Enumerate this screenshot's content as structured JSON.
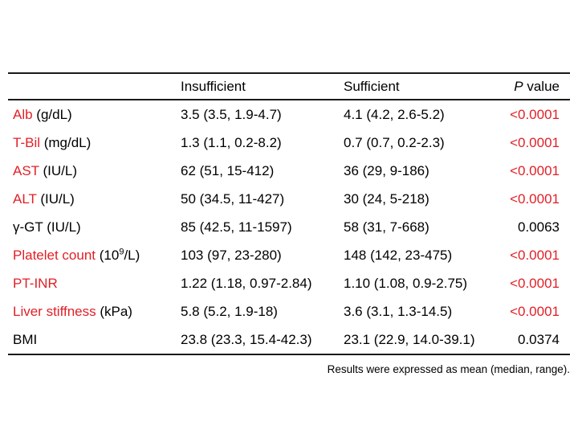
{
  "colors": {
    "accent_red": "#e11f26",
    "rule": "#1a1a1a",
    "text": "#000000",
    "background": "#ffffff"
  },
  "table": {
    "columns": {
      "row_header": "",
      "insufficient": "Insufficient",
      "sufficient": "Sufficient",
      "p_italic": "P",
      "p_rest": " value"
    },
    "rows": [
      {
        "name": "Alb",
        "unit": " (g/dL)",
        "name_red": true,
        "insufficient": "3.5 (3.5, 1.9-4.7)",
        "sufficient": "4.1 (4.2, 2.6-5.2)",
        "p": "<0.0001",
        "p_red": true
      },
      {
        "name": "T-Bil",
        "unit": " (mg/dL)",
        "name_red": true,
        "insufficient": "1.3 (1.1, 0.2-8.2)",
        "sufficient": "0.7 (0.7, 0.2-2.3)",
        "p": "<0.0001",
        "p_red": true
      },
      {
        "name": "AST",
        "unit": " (IU/L)",
        "name_red": true,
        "insufficient": "62 (51, 15-412)",
        "sufficient": "36 (29, 9-186)",
        "p": "<0.0001",
        "p_red": true
      },
      {
        "name": "ALT",
        "unit": " (IU/L)",
        "name_red": true,
        "insufficient": "50 (34.5, 11-427)",
        "sufficient": "30 (24, 5-218)",
        "p": "<0.0001",
        "p_red": true
      },
      {
        "name": "γ-GT",
        "unit": " (IU/L)",
        "name_red": false,
        "insufficient": "85 (42.5, 11-1597)",
        "sufficient": "58 (31, 7-668)",
        "p": "0.0063",
        "p_red": false
      },
      {
        "name": "Platelet count",
        "unit": " (10⁹/L)",
        "name_red": true,
        "insufficient": "103 (97, 23-280)",
        "sufficient": "148 (142, 23-475)",
        "p": "<0.0001",
        "p_red": true
      },
      {
        "name": "PT-INR",
        "unit": "",
        "name_red": true,
        "insufficient": "1.22 (1.18, 0.97-2.84)",
        "sufficient": "1.10 (1.08, 0.9-2.75)",
        "p": "<0.0001",
        "p_red": true
      },
      {
        "name": "Liver stiffness",
        "unit": " (kPa)",
        "name_red": true,
        "insufficient": "5.8 (5.2, 1.9-18)",
        "sufficient": "3.6 (3.1, 1.3-14.5)",
        "p": "<0.0001",
        "p_red": true
      },
      {
        "name": "BMI",
        "unit": "",
        "name_red": false,
        "insufficient": "23.8 (23.3, 15.4-42.3)",
        "sufficient": "23.1 (22.9, 14.0-39.1)",
        "p": "0.0374",
        "p_red": false
      }
    ]
  },
  "footer": {
    "note": "Results were expressed as mean (median, range)."
  }
}
